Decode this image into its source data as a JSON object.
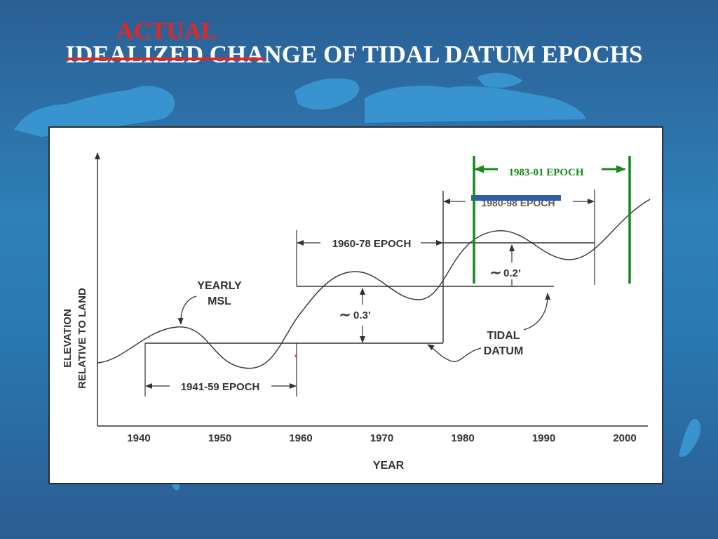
{
  "slide": {
    "title_struck": "IDEALIZED CHA",
    "title_rest": "NGE OF TIDAL DATUM EPOCHS",
    "correction": "ACTUAL"
  },
  "diagram": {
    "y_axis_label_line1": "ELEVATION",
    "y_axis_label_line2": "RELATIVE TO LAND",
    "x_axis_label": "YEAR",
    "x_ticks": [
      "1940",
      "1950",
      "1960",
      "1970",
      "1980",
      "1990",
      "2000"
    ],
    "yearly_msl_line1": "YEARLY",
    "yearly_msl_line2": "MSL",
    "tidal_datum_line1": "TIDAL",
    "tidal_datum_line2": "DATUM",
    "epoch_1941": "1941-59 EPOCH",
    "epoch_1960": "1960-78 EPOCH",
    "epoch_1983": "1983-01 EPOCH",
    "change_1": "0.3’",
    "change_2": "0.2’",
    "tilde": "∼",
    "colors": {
      "line": "#333333",
      "annotation_green": "#168a1a",
      "highlight_blue": "#2f5ea8",
      "title_red": "#e52620"
    }
  }
}
